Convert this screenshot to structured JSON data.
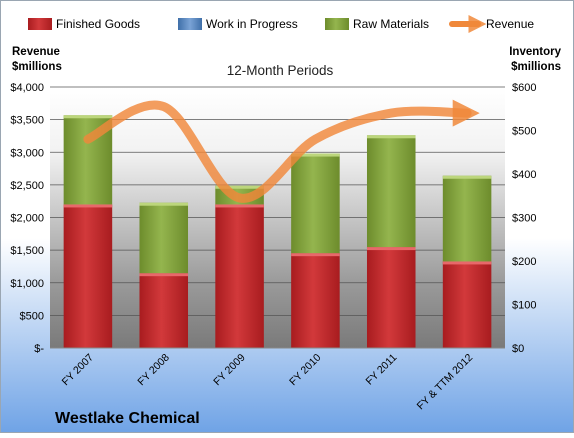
{
  "chart_data": {
    "type": "bar",
    "stacked": true,
    "title": "12-Month Periods",
    "company": "Westlake Chemical",
    "ylabel_left": [
      "Revenue",
      "$millions"
    ],
    "ylabel_right": [
      "Inventory",
      "$millions"
    ],
    "categories": [
      "FY 2007",
      "FY 2008",
      "FY 2009",
      "FY 2010",
      "FY 2011",
      "FY & TTM 2012"
    ],
    "left_axis": {
      "min": 0,
      "max": 4000,
      "ticks": [
        "$-",
        "$500",
        "$1,000",
        "$1,500",
        "$2,000",
        "$2,500",
        "$3,000",
        "$3,500",
        "$4,000"
      ]
    },
    "right_axis": {
      "min": 0,
      "max": 600,
      "ticks": [
        "$0",
        "$100",
        "$200",
        "$300",
        "$400",
        "$500",
        "$600"
      ]
    },
    "series": [
      {
        "name": "Finished Goods",
        "axis": "right",
        "color": "#c0282a",
        "values": [
          330,
          172,
          330,
          218,
          232,
          199
        ]
      },
      {
        "name": "Work in Progress",
        "axis": "right",
        "color": "#4f81bd",
        "values": [
          0,
          0,
          0,
          0,
          0,
          0
        ]
      },
      {
        "name": "Raw Materials",
        "axis": "right",
        "color": "#7f9f3a",
        "values": [
          205,
          162,
          43,
          229,
          257,
          197
        ]
      },
      {
        "name": "Revenue",
        "axis": "left",
        "color": "#f0883a",
        "type": "line",
        "values": [
          3200,
          3700,
          2300,
          3200,
          3600,
          3600
        ]
      }
    ],
    "legend_position": "top",
    "grid": true
  }
}
